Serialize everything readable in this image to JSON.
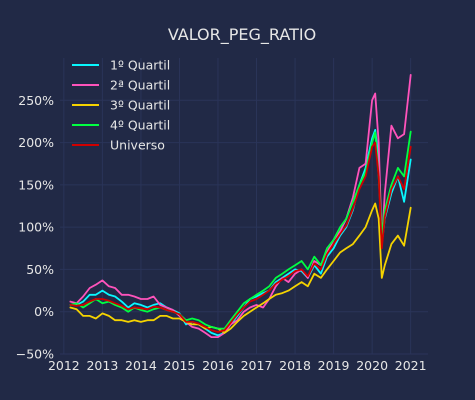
{
  "chart_data": {
    "type": "line",
    "title": "VALOR_PEG_RATIO",
    "xlabel": "",
    "ylabel": "",
    "xlim": [
      2011.9,
      2021.45
    ],
    "ylim": [
      -0.5,
      3.0
    ],
    "x_ticks": [
      2012,
      2013,
      2014,
      2015,
      2016,
      2017,
      2018,
      2019,
      2020,
      2021
    ],
    "x_tick_labels": [
      "2012",
      "2013",
      "2014",
      "2015",
      "2016",
      "2017",
      "2018",
      "2019",
      "2020",
      "2021"
    ],
    "y_ticks": [
      -0.5,
      0,
      0.5,
      1.0,
      1.5,
      2.0,
      2.5
    ],
    "y_tick_labels": [
      "−50%",
      "0%",
      "50%",
      "100%",
      "150%",
      "200%",
      "250%"
    ],
    "grid": true,
    "legend_position": "top-left",
    "background": "#212946",
    "x": [
      2012.17,
      2012.33,
      2012.5,
      2012.67,
      2012.83,
      2013.0,
      2013.17,
      2013.33,
      2013.5,
      2013.67,
      2013.83,
      2014.0,
      2014.17,
      2014.33,
      2014.5,
      2014.67,
      2014.83,
      2015.0,
      2015.17,
      2015.33,
      2015.5,
      2015.67,
      2015.83,
      2016.0,
      2016.17,
      2016.33,
      2016.5,
      2016.67,
      2016.83,
      2017.0,
      2017.17,
      2017.33,
      2017.5,
      2017.67,
      2017.83,
      2018.0,
      2018.17,
      2018.33,
      2018.5,
      2018.67,
      2018.83,
      2019.0,
      2019.17,
      2019.33,
      2019.5,
      2019.67,
      2019.83,
      2020.0,
      2020.08,
      2020.17,
      2020.25,
      2020.33,
      2020.5,
      2020.67,
      2020.83,
      2021.0
    ],
    "series": [
      {
        "name": "1º Quartil",
        "color": "#08F7FE",
        "values": [
          0.08,
          0.08,
          0.12,
          0.2,
          0.2,
          0.25,
          0.2,
          0.18,
          0.12,
          0.05,
          0.1,
          0.08,
          0.05,
          0.08,
          0.1,
          0.05,
          0.02,
          -0.02,
          -0.15,
          -0.12,
          -0.15,
          -0.2,
          -0.25,
          -0.28,
          -0.25,
          -0.15,
          -0.05,
          0.05,
          0.15,
          0.18,
          0.22,
          0.25,
          0.35,
          0.4,
          0.45,
          0.5,
          0.48,
          0.4,
          0.55,
          0.45,
          0.65,
          0.75,
          0.9,
          1.0,
          1.2,
          1.5,
          1.7,
          2.05,
          2.15,
          1.8,
          0.8,
          1.1,
          1.4,
          1.6,
          1.3,
          1.8
        ]
      },
      {
        "name": "2ª Quartil",
        "color": "#FE53BB",
        "values": [
          0.12,
          0.1,
          0.18,
          0.28,
          0.32,
          0.37,
          0.3,
          0.28,
          0.2,
          0.2,
          0.18,
          0.15,
          0.15,
          0.18,
          0.08,
          0.05,
          0.02,
          -0.05,
          -0.12,
          -0.18,
          -0.2,
          -0.25,
          -0.3,
          -0.3,
          -0.25,
          -0.15,
          -0.1,
          0.0,
          0.05,
          0.08,
          0.05,
          0.15,
          0.3,
          0.4,
          0.35,
          0.45,
          0.5,
          0.4,
          0.6,
          0.55,
          0.7,
          0.85,
          0.95,
          1.1,
          1.35,
          1.7,
          1.75,
          2.5,
          2.58,
          2.0,
          0.8,
          1.4,
          2.2,
          2.05,
          2.1,
          2.8
        ]
      },
      {
        "name": "3º Quartil",
        "color": "#F5D300",
        "values": [
          0.05,
          0.03,
          -0.05,
          -0.05,
          -0.08,
          -0.02,
          -0.05,
          -0.1,
          -0.1,
          -0.12,
          -0.1,
          -0.12,
          -0.1,
          -0.1,
          -0.05,
          -0.05,
          -0.08,
          -0.08,
          -0.12,
          -0.15,
          -0.15,
          -0.2,
          -0.18,
          -0.2,
          -0.25,
          -0.2,
          -0.12,
          -0.05,
          0.0,
          0.05,
          0.1,
          0.15,
          0.2,
          0.22,
          0.25,
          0.3,
          0.35,
          0.3,
          0.45,
          0.4,
          0.5,
          0.6,
          0.7,
          0.75,
          0.8,
          0.9,
          1.0,
          1.2,
          1.28,
          1.1,
          0.4,
          0.55,
          0.8,
          0.9,
          0.78,
          1.23
        ]
      },
      {
        "name": "4º Quartil",
        "color": "#00ff41",
        "values": [
          0.08,
          0.1,
          0.05,
          0.1,
          0.15,
          0.1,
          0.12,
          0.08,
          0.05,
          0.0,
          0.05,
          0.02,
          0.0,
          0.03,
          0.05,
          0.02,
          0.0,
          -0.03,
          -0.1,
          -0.08,
          -0.1,
          -0.15,
          -0.18,
          -0.2,
          -0.2,
          -0.1,
          0.0,
          0.1,
          0.15,
          0.2,
          0.25,
          0.3,
          0.4,
          0.45,
          0.5,
          0.55,
          0.6,
          0.5,
          0.65,
          0.55,
          0.75,
          0.85,
          1.0,
          1.1,
          1.3,
          1.5,
          1.65,
          2.0,
          2.12,
          1.6,
          0.9,
          1.2,
          1.5,
          1.7,
          1.6,
          2.13
        ]
      },
      {
        "name": "Universo",
        "color": "#d00000",
        "values": [
          0.08,
          0.07,
          0.08,
          0.12,
          0.15,
          0.15,
          0.13,
          0.1,
          0.07,
          0.03,
          0.05,
          0.04,
          0.03,
          0.06,
          0.05,
          0.02,
          0.0,
          -0.03,
          -0.12,
          -0.12,
          -0.14,
          -0.18,
          -0.22,
          -0.24,
          -0.22,
          -0.13,
          -0.03,
          0.05,
          0.12,
          0.15,
          0.2,
          0.25,
          0.33,
          0.38,
          0.42,
          0.48,
          0.5,
          0.42,
          0.57,
          0.5,
          0.68,
          0.8,
          0.92,
          1.02,
          1.22,
          1.45,
          1.6,
          1.95,
          2.0,
          1.6,
          0.75,
          1.12,
          1.45,
          1.6,
          1.45,
          1.95
        ]
      }
    ]
  }
}
